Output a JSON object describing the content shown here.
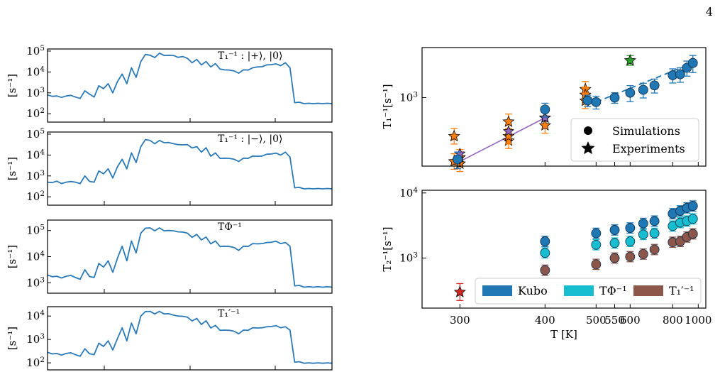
{
  "page_number": "4",
  "colors": {
    "line": "#2a7ab9",
    "kubo": "#1f77b4",
    "tphi": "#17becf",
    "t1p": "#8c564b",
    "orange": "#ff7f0e",
    "purple": "#9467bd",
    "green": "#2ca02c",
    "red": "#d62728"
  },
  "chart_data": [
    {
      "type": "line",
      "panel": "left-1",
      "label": "T₁⁻¹ : |+⟩, |0⟩",
      "ylabel": "[s⁻¹]",
      "yscale": "log",
      "ylim_exp": [
        1.6,
        5.1
      ],
      "yticks": [
        {
          "exp": 2,
          "label": "10"
        },
        {
          "exp": 3,
          "label": "10"
        },
        {
          "exp": 4,
          "label": "10"
        },
        {
          "exp": 5,
          "label": "10"
        }
      ],
      "y_log10": [
        2.9,
        2.85,
        2.85,
        2.8,
        2.85,
        2.9,
        2.8,
        2.75,
        3.1,
        3.0,
        2.8,
        3.4,
        3.2,
        3.5,
        3.0,
        3.6,
        3.9,
        3.5,
        4.2,
        3.8,
        4.5,
        4.9,
        4.8,
        4.75,
        4.9,
        4.85,
        4.8,
        4.85,
        4.7,
        4.8,
        4.65,
        4.5,
        4.6,
        4.4,
        4.5,
        4.3,
        4.4,
        4.2,
        4.1,
        4.15,
        4.05,
        4.0,
        4.1,
        4.15,
        4.2,
        4.3,
        4.25,
        4.4,
        4.35,
        4.45,
        4.3,
        4.5,
        4.2,
        2.55,
        2.55,
        2.5,
        2.5,
        2.5,
        2.5,
        2.5,
        2.5,
        2.5
      ]
    },
    {
      "type": "line",
      "panel": "left-2",
      "label": "T₁⁻¹ : |−⟩, |0⟩",
      "ylabel": "[s⁻¹]",
      "yscale": "log",
      "ylim_exp": [
        1.6,
        5.1
      ],
      "yticks": [
        {
          "exp": 2,
          "label": "10"
        },
        {
          "exp": 3,
          "label": "10"
        },
        {
          "exp": 4,
          "label": "10"
        },
        {
          "exp": 5,
          "label": "10"
        }
      ],
      "y_log10": [
        2.7,
        2.7,
        2.75,
        2.65,
        2.7,
        2.75,
        2.7,
        2.65,
        3.0,
        2.8,
        2.7,
        3.3,
        3.1,
        3.4,
        2.9,
        3.5,
        3.8,
        3.4,
        4.1,
        3.7,
        4.4,
        4.8,
        4.7,
        4.6,
        4.7,
        4.65,
        4.6,
        4.6,
        4.5,
        4.55,
        4.5,
        4.4,
        4.4,
        4.2,
        4.35,
        4.0,
        4.1,
        3.9,
        3.85,
        3.9,
        3.8,
        3.75,
        3.85,
        3.9,
        3.95,
        4.0,
        3.95,
        4.1,
        4.05,
        4.15,
        4.0,
        4.2,
        3.9,
        2.45,
        2.45,
        2.4,
        2.4,
        2.4,
        2.4,
        2.4,
        2.4,
        2.4
      ]
    },
    {
      "type": "line",
      "panel": "left-3",
      "label": "TΦ⁻¹",
      "ylabel": "[s⁻¹]",
      "yscale": "log",
      "ylim_exp": [
        2.6,
        5.4
      ],
      "yticks": [
        {
          "exp": 3,
          "label": "10"
        },
        {
          "exp": 4,
          "label": "10"
        },
        {
          "exp": 5,
          "label": "10"
        }
      ],
      "y_log10": [
        3.3,
        3.25,
        3.25,
        3.2,
        3.25,
        3.3,
        3.2,
        3.15,
        3.5,
        3.3,
        3.2,
        3.8,
        3.6,
        3.9,
        3.4,
        4.0,
        4.4,
        3.9,
        4.6,
        4.2,
        4.9,
        5.15,
        5.1,
        5.05,
        5.1,
        5.05,
        5.0,
        5.05,
        4.95,
        5.0,
        4.9,
        4.8,
        4.85,
        4.7,
        4.75,
        4.55,
        4.6,
        4.45,
        4.4,
        4.45,
        4.35,
        4.3,
        4.4,
        4.45,
        4.5,
        4.55,
        4.5,
        4.6,
        4.55,
        4.65,
        4.5,
        4.6,
        4.4,
        2.9,
        2.9,
        2.85,
        2.85,
        2.85,
        2.85,
        2.85,
        2.85,
        2.85
      ]
    },
    {
      "type": "line",
      "panel": "left-4",
      "label": "T₁′⁻¹",
      "ylabel": "[s⁻¹]",
      "yscale": "log",
      "ylim_exp": [
        1.7,
        4.4
      ],
      "yticks": [
        {
          "exp": 2,
          "label": "10"
        },
        {
          "exp": 3,
          "label": "10"
        },
        {
          "exp": 4,
          "label": "10"
        }
      ],
      "y_log10": [
        2.45,
        2.4,
        2.4,
        2.35,
        2.4,
        2.45,
        2.35,
        2.3,
        2.6,
        2.45,
        2.35,
        2.9,
        2.7,
        3.0,
        2.55,
        3.1,
        3.5,
        3.0,
        3.7,
        3.3,
        4.0,
        4.25,
        4.2,
        4.15,
        4.2,
        4.15,
        4.1,
        4.1,
        4.0,
        4.05,
        3.95,
        3.85,
        3.9,
        3.7,
        3.8,
        3.55,
        3.6,
        3.45,
        3.4,
        3.45,
        3.35,
        3.3,
        3.4,
        3.45,
        3.5,
        3.55,
        3.5,
        3.6,
        3.55,
        3.65,
        3.5,
        3.6,
        3.4,
        2.05,
        2.05,
        2.0,
        2.0,
        2.0,
        2.0,
        2.0,
        2.0,
        2.0
      ]
    },
    {
      "type": "scatter",
      "panel": "right-top",
      "ylabel": "T₁⁻¹[s⁻¹]",
      "yscale": "log",
      "xscale": "reciprocal",
      "xlim": [
        270,
        1080
      ],
      "ylim": [
        140,
        4200
      ],
      "yticks": [
        {
          "value": 1000,
          "label": "10³"
        }
      ],
      "legend": {
        "position": "bottom-right",
        "entries": [
          "Simulations",
          "Experiments"
        ]
      },
      "simulations": [
        {
          "x": 298,
          "y": 170
        },
        {
          "x": 400,
          "y": 710
        },
        {
          "x": 480,
          "y": 920
        },
        {
          "x": 500,
          "y": 880
        },
        {
          "x": 550,
          "y": 1000
        },
        {
          "x": 600,
          "y": 1150
        },
        {
          "x": 650,
          "y": 1250
        },
        {
          "x": 700,
          "y": 1420
        },
        {
          "x": 800,
          "y": 1900
        },
        {
          "x": 850,
          "y": 1950
        },
        {
          "x": 900,
          "y": 2350
        },
        {
          "x": 950,
          "y": 2700
        }
      ],
      "sim_errors": [
        40,
        140,
        150,
        160,
        150,
        260,
        260,
        280,
        380,
        400,
        500,
        650
      ],
      "fit_line": {
        "x": [
          500,
          980
        ],
        "y": [
          880,
          2800
        ]
      },
      "experiments_orange": [
        {
          "x": 295,
          "y": 330
        },
        {
          "x": 295,
          "y": 160
        },
        {
          "x": 300,
          "y": 180
        },
        {
          "x": 300,
          "y": 150
        },
        {
          "x": 350,
          "y": 500
        },
        {
          "x": 350,
          "y": 290
        },
        {
          "x": 350,
          "y": 330
        },
        {
          "x": 400,
          "y": 560
        },
        {
          "x": 400,
          "y": 450
        },
        {
          "x": 475,
          "y": 1270
        },
        {
          "x": 475,
          "y": 1080
        },
        {
          "x": 475,
          "y": 910
        }
      ],
      "experiments_purple": [
        {
          "x": 300,
          "y": 200
        },
        {
          "x": 350,
          "y": 380
        },
        {
          "x": 400,
          "y": 560
        }
      ],
      "purple_line": {
        "x": [
          300,
          400
        ],
        "y": [
          160,
          560
        ]
      },
      "experiment_green": {
        "x": 600,
        "y": 2900
      }
    },
    {
      "type": "scatter",
      "panel": "right-bottom",
      "ylabel": "T₂⁻¹[s⁻¹]",
      "xlabel": "T [K]",
      "yscale": "log",
      "xscale": "reciprocal",
      "xlim": [
        270,
        1080
      ],
      "ylim": [
        170,
        11000
      ],
      "yticks": [
        {
          "value": 1000,
          "label": "10³"
        },
        {
          "value": 10000,
          "label": "10⁴"
        }
      ],
      "xticks": [
        {
          "value": 300,
          "label": "300"
        },
        {
          "value": 400,
          "label": "400"
        },
        {
          "value": 500,
          "label": "500"
        },
        {
          "value": 550,
          "label": "550"
        },
        {
          "value": 600,
          "label": "600"
        },
        {
          "value": 800,
          "label": "800"
        },
        {
          "value": 1000,
          "label": "1000"
        }
      ],
      "legend": {
        "position": "bottom",
        "entries": [
          "Kubo",
          "TΦ⁻¹",
          "T₁′⁻¹"
        ]
      },
      "x": [
        400,
        500,
        550,
        600,
        650,
        700,
        800,
        850,
        900,
        950
      ],
      "kubo": [
        1800,
        2400,
        2700,
        2900,
        3400,
        3700,
        4800,
        5300,
        5900,
        6300
      ],
      "tphi": [
        1200,
        1600,
        1700,
        1800,
        2300,
        2400,
        3100,
        3500,
        3700,
        4000
      ],
      "t1p": [
        650,
        800,
        1000,
        1050,
        1150,
        1350,
        1750,
        1800,
        2100,
        2350
      ],
      "experiment_red": {
        "x": 300,
        "y": 300
      }
    }
  ]
}
